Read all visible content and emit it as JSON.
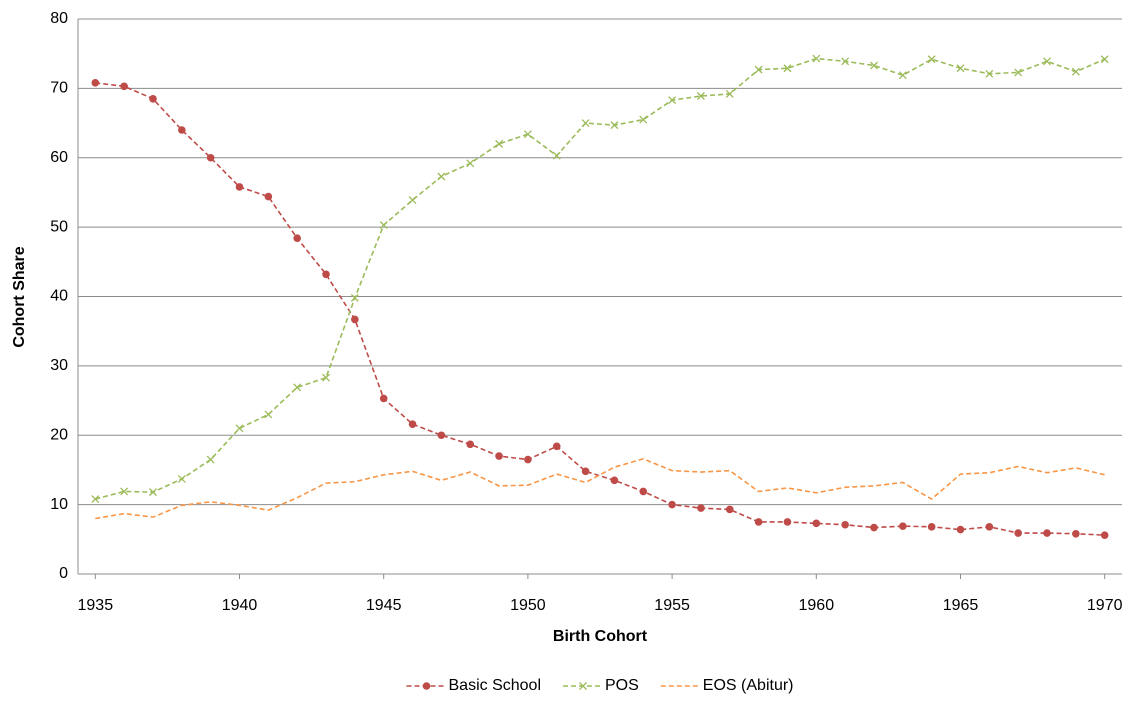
{
  "chart_data": {
    "type": "line",
    "x_label": "Birth Cohort",
    "y_label": "Cohort Share",
    "x": [
      1935,
      1936,
      1937,
      1938,
      1939,
      1940,
      1941,
      1942,
      1943,
      1944,
      1945,
      1946,
      1947,
      1948,
      1949,
      1950,
      1951,
      1952,
      1953,
      1954,
      1955,
      1956,
      1957,
      1958,
      1959,
      1960,
      1961,
      1962,
      1963,
      1964,
      1965,
      1966,
      1967,
      1968,
      1969,
      1970
    ],
    "series": [
      {
        "name": "Basic School",
        "color": "#be4b48",
        "marker": "circle",
        "values": [
          70.8,
          70.3,
          68.5,
          64,
          60,
          55.8,
          54.4,
          48.4,
          43.2,
          36.7,
          25.3,
          21.6,
          20,
          18.7,
          17,
          16.5,
          18.4,
          14.8,
          13.5,
          11.9,
          10,
          9.5,
          9.3,
          7.5,
          7.5,
          7.3,
          7.1,
          6.7,
          6.9,
          6.8,
          6.4,
          6.8,
          5.9,
          5.9,
          5.8,
          5.6
        ]
      },
      {
        "name": "POS",
        "color": "#9bbb59",
        "marker": "x",
        "values": [
          10.8,
          11.9,
          11.8,
          13.7,
          16.5,
          21,
          23,
          26.9,
          28.3,
          39.8,
          50.3,
          53.9,
          57.3,
          59.2,
          62,
          63.4,
          60.3,
          65,
          64.7,
          65.5,
          68.3,
          68.9,
          69.2,
          72.7,
          72.9,
          74.3,
          73.9,
          73.3,
          71.9,
          74.2,
          72.9,
          72.1,
          72.3,
          73.9,
          72.4,
          74.2
        ]
      },
      {
        "name": "EOS (Abitur)",
        "color": "#f79646",
        "marker": "none",
        "values": [
          8,
          8.7,
          8.2,
          9.9,
          10.4,
          9.9,
          9.2,
          11,
          13.1,
          13.3,
          14.3,
          14.8,
          13.5,
          14.7,
          12.7,
          12.8,
          14.4,
          13.2,
          15.4,
          16.6,
          14.9,
          14.7,
          14.9,
          11.9,
          12.4,
          11.7,
          12.5,
          12.7,
          13.2,
          10.8,
          14.4,
          14.6,
          15.5,
          14.6,
          15.3,
          14.3
        ]
      }
    ],
    "xlim": [
      1934.4,
      1970.6
    ],
    "xticks": [
      1935,
      1940,
      1945,
      1950,
      1955,
      1960,
      1965,
      1970
    ],
    "ylim": [
      0,
      80
    ],
    "yticks": [
      0,
      10,
      20,
      30,
      40,
      50,
      60,
      70,
      80
    ],
    "grid": true,
    "legend": "bottom"
  }
}
